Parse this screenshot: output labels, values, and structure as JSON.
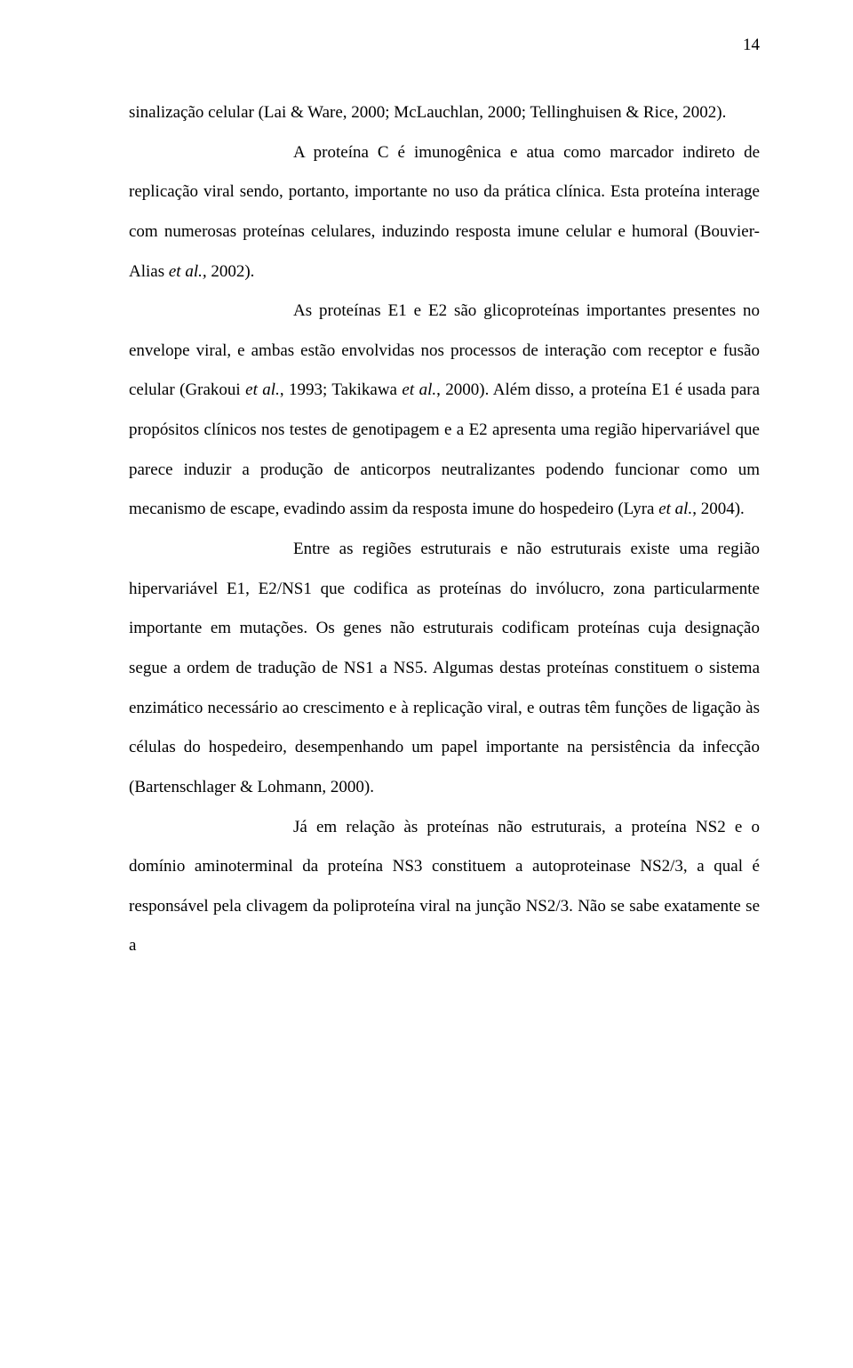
{
  "page_number": "14",
  "paragraphs": {
    "p1": {
      "text": "sinalização celular (Lai & Ware, 2000; McLauchlan, 2000; Tellinghuisen & Rice, 2002)."
    },
    "p2": {
      "prefix": "A proteína C é imunogênica e atua como marcador indireto de replicação viral sendo, portanto, importante no uso da prática clínica. Esta proteína interage com numerosas proteínas celulares, induzindo resposta imune celular e humoral (Bouvier-Alias ",
      "italic1": "et al.,",
      "suffix": " 2002)."
    },
    "p3": {
      "prefix": "As proteínas E1 e E2 são glicoproteínas importantes presentes no envelope viral, e ambas estão envolvidas nos processos de interação com receptor e fusão celular (Grakoui ",
      "italic1": "et al.",
      "mid1": ", 1993; Takikawa ",
      "italic2": "et al.",
      "mid2": ", 2000). Além disso, a proteína E1 é usada para propósitos clínicos nos testes de genotipagem e a E2 apresenta uma região hipervariável que parece induzir a produção de anticorpos neutralizantes podendo funcionar como um mecanismo de escape, evadindo assim da resposta imune do hospedeiro (Lyra ",
      "italic3": "et al.",
      "suffix": ", 2004)."
    },
    "p4": {
      "text": "Entre as regiões estruturais e não estruturais existe uma região hipervariável E1, E2/NS1 que codifica as proteínas do invólucro, zona particularmente importante em mutações. Os genes não estruturais codificam proteínas cuja designação segue a ordem de tradução de NS1 a NS5. Algumas destas proteínas constituem o sistema enzimático necessário ao crescimento e à replicação viral, e outras têm funções de ligação às células do hospedeiro, desempenhando um papel importante na persistência da infecção (Bartenschlager & Lohmann, 2000)."
    },
    "p5": {
      "text": "Já em relação às proteínas não estruturais, a proteína NS2 e o domínio aminoterminal da proteína NS3 constituem a autoproteinase NS2/3, a qual é responsável pela clivagem da poliproteína viral na junção NS2/3. Não se sabe exatamente se a"
    }
  }
}
